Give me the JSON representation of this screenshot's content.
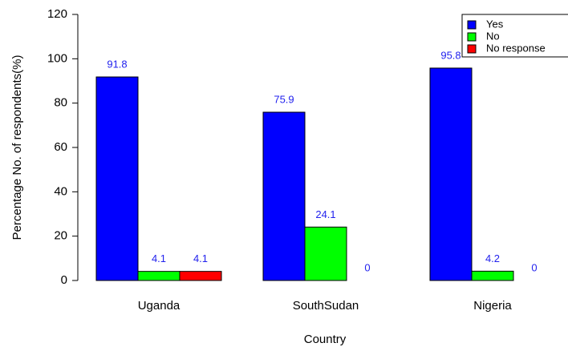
{
  "chart_data": {
    "type": "bar",
    "x_label": "Country",
    "y_label": "Percentage No. of respondents(%)",
    "categories": [
      "Uganda",
      "SouthSudan",
      "Nigeria"
    ],
    "series": [
      {
        "name": "Yes",
        "color": "#0000ff",
        "values": [
          91.8,
          75.9,
          95.8
        ]
      },
      {
        "name": "No",
        "color": "#00ff00",
        "values": [
          4.1,
          24.1,
          4.2
        ]
      },
      {
        "name": "No response",
        "color": "#ff0000",
        "values": [
          4.1,
          0,
          0
        ]
      }
    ],
    "ylim": [
      0,
      120
    ],
    "yticks": [
      0,
      20,
      40,
      60,
      80,
      100,
      120
    ],
    "legend": "topright",
    "grid": false
  }
}
